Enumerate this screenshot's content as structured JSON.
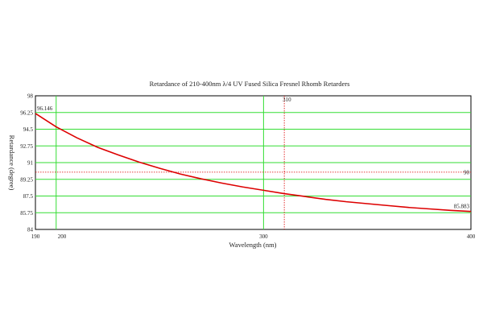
{
  "chart_data": {
    "type": "line",
    "title": "Retardance of 210-400nm λ/4 UV Fused Silica Fresnel Rhomb Retarders",
    "xlabel": "Wavelength (nm)",
    "ylabel": "Retardance (degree)",
    "xlim": [
      190,
      400
    ],
    "ylim": [
      84,
      98
    ],
    "x_ticks": [
      "190",
      "200",
      "300",
      "400"
    ],
    "y_ticks": [
      "84",
      "85.75",
      "87.5",
      "89.25",
      "91",
      "92.75",
      "94.5",
      "96.25",
      "98"
    ],
    "grid": true,
    "grid_color": "#33dd33",
    "line_color": "#dd0000",
    "series": [
      {
        "x": [
          190,
          200,
          210,
          220,
          230,
          240,
          250,
          260,
          270,
          280,
          290,
          300,
          310,
          320,
          330,
          340,
          350,
          360,
          370,
          380,
          390,
          400
        ],
        "values": [
          96.146,
          94.75,
          93.6,
          92.6,
          91.8,
          91.05,
          90.4,
          89.8,
          89.3,
          88.85,
          88.45,
          88.1,
          87.75,
          87.45,
          87.15,
          86.9,
          86.7,
          86.5,
          86.3,
          86.15,
          86.0,
          85.883
        ]
      }
    ],
    "reference_lines": [
      {
        "axis": "x",
        "value": 310,
        "label": "310"
      },
      {
        "axis": "y",
        "value": 90,
        "label": "90"
      }
    ],
    "annotations": [
      {
        "label": "96.146",
        "x": 190,
        "y": 96.146
      },
      {
        "label": "85.883",
        "x": 400,
        "y": 85.883
      }
    ]
  }
}
